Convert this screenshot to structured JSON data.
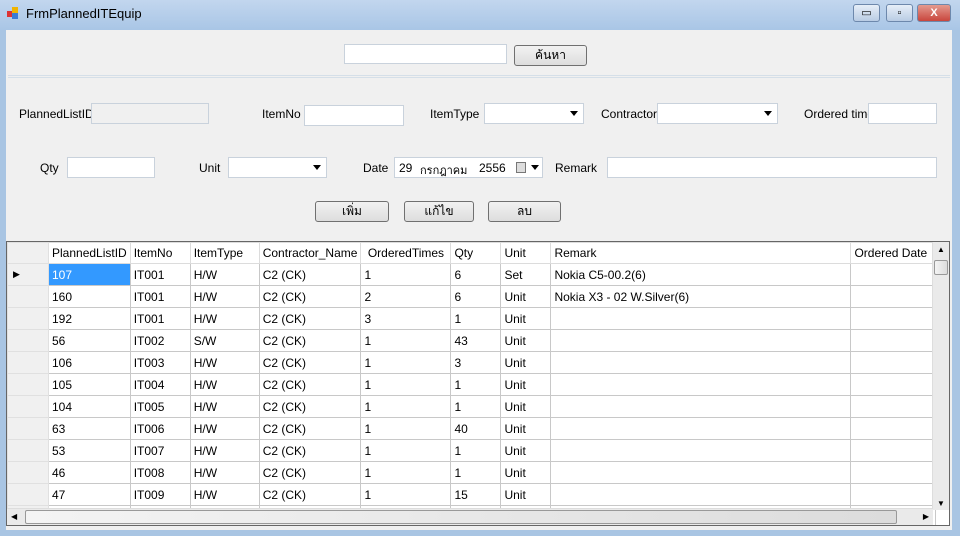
{
  "window": {
    "title": "FrmPlannedITEquip",
    "minimize": "▭",
    "maximize": "▫",
    "close": "X"
  },
  "search": {
    "value": "",
    "button": "ค้นหา"
  },
  "form": {
    "planned_list_id_label": "PlannedListID",
    "planned_list_id": "",
    "item_no_label": "ItemNo",
    "item_no": "",
    "item_type_label": "ItemType",
    "item_type": "",
    "contractor_label": "Contractor",
    "contractor": "",
    "ordered_time_label": "Ordered time",
    "ordered_time": "",
    "qty_label": "Qty",
    "qty": "",
    "unit_label": "Unit",
    "unit": "",
    "date_label": "Date",
    "date_day": "29",
    "date_month": "กรกฎาคม",
    "date_year": "2556",
    "remark_label": "Remark",
    "remark": ""
  },
  "buttons": {
    "add": "เพิ่ม",
    "edit": "แก้ไข",
    "delete": "ลบ"
  },
  "grid": {
    "columns": [
      "PlannedListID",
      "ItemNo",
      "ItemType",
      "Contractor_Name",
      "OrderedTimes",
      "Qty",
      "Unit",
      "Remark",
      "Ordered Date"
    ],
    "rows": [
      [
        "107",
        "IT001",
        "H/W",
        "C2 (CK)",
        "1",
        "6",
        "Set",
        "Nokia C5-00.2(6)",
        ""
      ],
      [
        "160",
        "IT001",
        "H/W",
        "C2 (CK)",
        "2",
        "6",
        "Unit",
        "Nokia X3 - 02 W.Silver(6)",
        ""
      ],
      [
        "192",
        "IT001",
        "H/W",
        "C2 (CK)",
        "3",
        "1",
        "Unit",
        "",
        ""
      ],
      [
        "56",
        "IT002",
        "S/W",
        "C2 (CK)",
        "1",
        "43",
        "Unit",
        "",
        ""
      ],
      [
        "106",
        "IT003",
        "H/W",
        "C2 (CK)",
        "1",
        "3",
        "Unit",
        "",
        ""
      ],
      [
        "105",
        "IT004",
        "H/W",
        "C2 (CK)",
        "1",
        "1",
        "Unit",
        "",
        ""
      ],
      [
        "104",
        "IT005",
        "H/W",
        "C2 (CK)",
        "1",
        "1",
        "Unit",
        "",
        ""
      ],
      [
        "63",
        "IT006",
        "H/W",
        "C2 (CK)",
        "1",
        "40",
        "Unit",
        "",
        ""
      ],
      [
        "53",
        "IT007",
        "H/W",
        "C2 (CK)",
        "1",
        "1",
        "Unit",
        "",
        ""
      ],
      [
        "46",
        "IT008",
        "H/W",
        "C2 (CK)",
        "1",
        "1",
        "Unit",
        "",
        ""
      ],
      [
        "47",
        "IT009",
        "H/W",
        "C2 (CK)",
        "1",
        "15",
        "Unit",
        "",
        ""
      ],
      [
        "",
        "",
        "",
        "",
        "",
        "",
        "",
        "",
        ""
      ]
    ],
    "selected_row_indicator": "▶"
  },
  "colors": {
    "selection": "#3399ff",
    "frame": "#a9c5e3",
    "close": "#c9463d"
  }
}
